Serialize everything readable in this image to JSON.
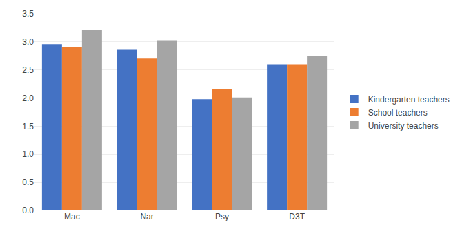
{
  "chart_data": {
    "type": "bar",
    "categories": [
      "Mac",
      "Nar",
      "Psy",
      "D3T"
    ],
    "series": [
      {
        "name": "Kindergarten teachers",
        "color": "#4472C4",
        "values": [
          2.96,
          2.87,
          1.98,
          2.6
        ]
      },
      {
        "name": "School teachers",
        "color": "#ED7D31",
        "values": [
          2.91,
          2.7,
          2.16,
          2.6
        ]
      },
      {
        "name": "University teachers",
        "color": "#A5A5A5",
        "values": [
          3.21,
          3.03,
          2.01,
          2.74
        ]
      }
    ],
    "ylim": [
      0,
      3.5
    ],
    "yticks": [
      {
        "value": 0,
        "label": "0.0"
      },
      0.5,
      {
        "value": 1,
        "label": "1.0"
      },
      1.5,
      {
        "value": 2,
        "label": "2.0"
      },
      2.5,
      {
        "value": 3,
        "label": "3.0"
      },
      3.5
    ],
    "grid": true,
    "legend": "right"
  }
}
